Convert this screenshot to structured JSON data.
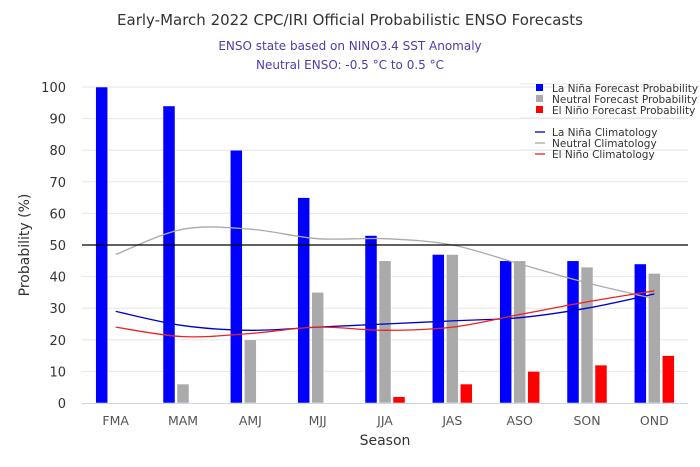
{
  "chart_data": {
    "type": "bar",
    "title": "Early-March 2022 CPC/IRI Official Probabilistic ENSO Forecasts",
    "subtitle_lines": [
      "ENSO state based on NINO3.4 SST Anomaly",
      "Neutral ENSO: -0.5 °C to 0.5 °C"
    ],
    "xlabel": "Season",
    "ylabel": "Probability (%)",
    "ylim": [
      0,
      100
    ],
    "yticks": [
      0,
      10,
      20,
      30,
      40,
      50,
      60,
      70,
      80,
      90,
      100
    ],
    "grid": true,
    "reference_line": 50,
    "categories": [
      "FMA",
      "MAM",
      "AMJ",
      "MJJ",
      "JJA",
      "JAS",
      "ASO",
      "SON",
      "OND"
    ],
    "series": [
      {
        "name": "La Niña Forecast Probability",
        "kind": "bar",
        "color": "#0000ff",
        "values": [
          100,
          94,
          80,
          65,
          53,
          47,
          45,
          45,
          44
        ]
      },
      {
        "name": "Neutral Forecast Probability",
        "kind": "bar",
        "color": "#aaaaaa",
        "values": [
          0,
          6,
          20,
          35,
          45,
          47,
          45,
          43,
          41
        ]
      },
      {
        "name": "El Niño Forecast Probability",
        "kind": "bar",
        "color": "#ff0000",
        "values": [
          0,
          0,
          0,
          0,
          2,
          6,
          10,
          12,
          15
        ]
      },
      {
        "name": "La Niña Climatology",
        "kind": "line",
        "color": "#0000cc",
        "values": [
          29,
          24.5,
          23,
          24,
          25,
          26,
          27,
          30,
          34.5
        ]
      },
      {
        "name": "Neutral Climatology",
        "kind": "line",
        "color": "#aaaaaa",
        "values": [
          47,
          55,
          55,
          52,
          52,
          50,
          44,
          38,
          33
        ]
      },
      {
        "name": "El Niño Climatology",
        "kind": "line",
        "color": "#ee2222",
        "values": [
          24,
          21,
          22,
          24,
          23,
          24,
          28,
          32,
          35.5
        ]
      }
    ],
    "legend_position": "top-right"
  }
}
